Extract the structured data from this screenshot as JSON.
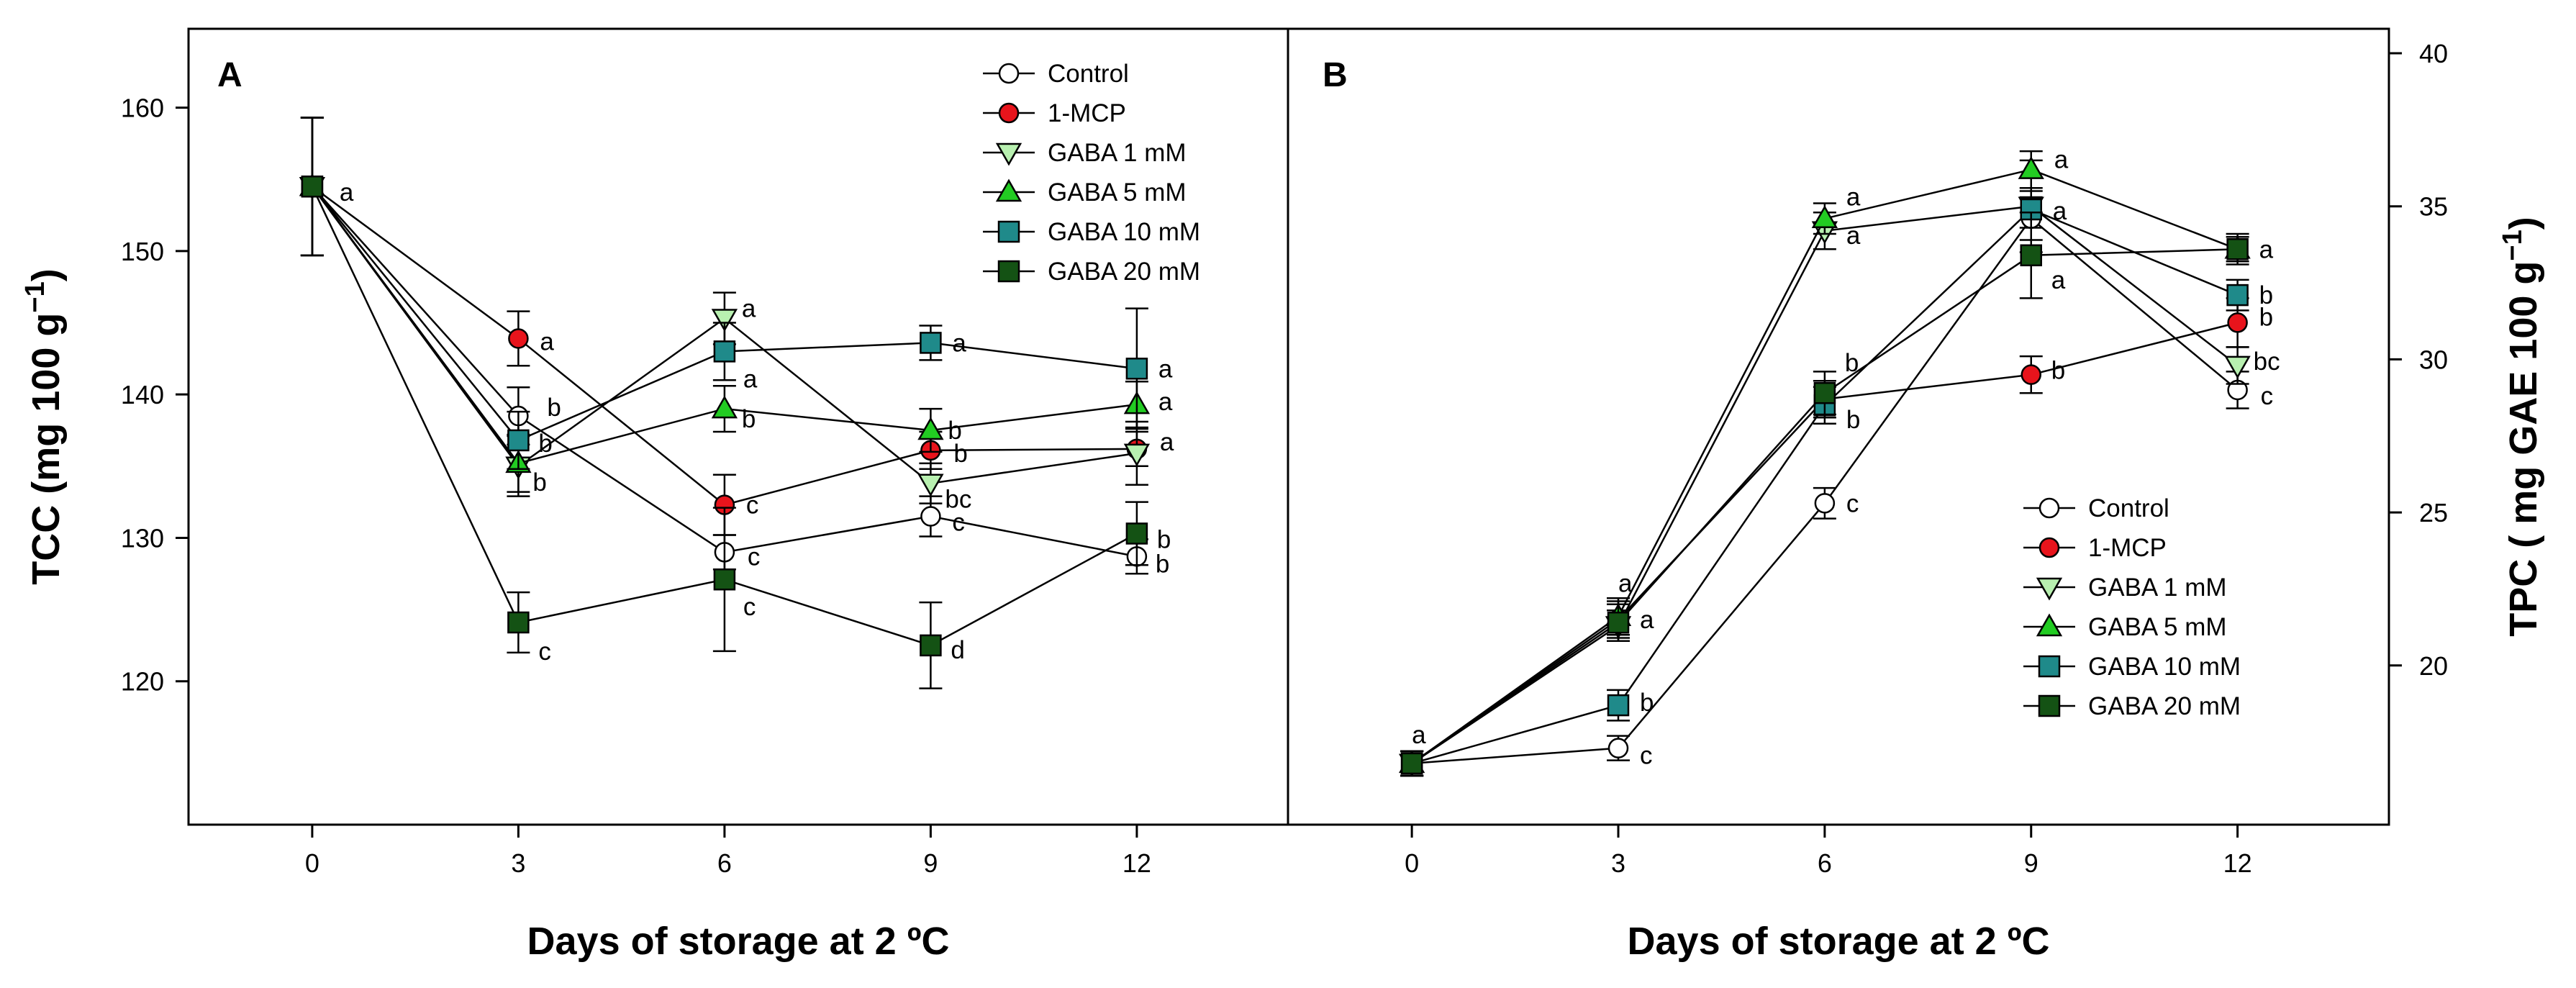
{
  "chart_data": [
    {
      "type": "line",
      "panel_label": "A",
      "xlabel": "Days of storage at 2 ºC",
      "ylabel": "TCC (mg 100 g",
      "ylabel_sup": "−1",
      "ylabel_end": ")",
      "y_axis_side": "left",
      "x": [
        0,
        3,
        6,
        9,
        12
      ],
      "xlim": [
        -1.8,
        14.2
      ],
      "ylim": [
        110,
        165.5
      ],
      "xticks": [
        "0",
        "3",
        "6",
        "9",
        "12"
      ],
      "yticks": [
        120,
        130,
        140,
        150,
        160
      ],
      "ytick_labels": [
        "120",
        "130",
        "140",
        "150",
        "160"
      ],
      "legend_position": "top-right",
      "series": [
        {
          "name": "Control",
          "marker": "circle",
          "fill": "#ffffff",
          "values": [
            154.5,
            138.5,
            129.0,
            131.5,
            128.7
          ],
          "errors": [
            4.8,
            2.0,
            1.2,
            1.4,
            1.2
          ],
          "letters": [
            "a",
            "b",
            "c",
            "c",
            "b"
          ]
        },
        {
          "name": "1-MCP",
          "marker": "circle",
          "fill": "#e8141c",
          "values": [
            154.5,
            143.9,
            132.3,
            136.1,
            136.2
          ],
          "errors": [
            4.8,
            1.9,
            2.1,
            1.3,
            1.2
          ],
          "letters": [
            "",
            "a",
            "c",
            "b",
            "a"
          ]
        },
        {
          "name": "GABA 1 mM",
          "marker": "triangle-down",
          "fill": "#b8f0b0",
          "values": [
            154.5,
            135.0,
            145.3,
            133.8,
            135.9
          ],
          "errors": [
            4.8,
            2.1,
            1.8,
            1.4,
            2.2
          ],
          "letters": [
            "",
            "b",
            "a",
            "bc",
            ""
          ]
        },
        {
          "name": "GABA 5 mM",
          "marker": "triangle-up",
          "fill": "#22cc22",
          "values": [
            154.5,
            135.2,
            139.0,
            137.5,
            139.3
          ],
          "errors": [
            4.8,
            2.0,
            1.6,
            1.5,
            1.6
          ],
          "letters": [
            "",
            "",
            "b",
            "b",
            "a"
          ]
        },
        {
          "name": "GABA 10 mM",
          "marker": "square",
          "fill": "#1f8a8a",
          "values": [
            154.5,
            136.8,
            143.0,
            143.6,
            141.8
          ],
          "errors": [
            4.8,
            2.0,
            2.0,
            1.2,
            4.2
          ],
          "letters": [
            "",
            "b",
            "a",
            "a",
            "a"
          ]
        },
        {
          "name": "GABA 20 mM",
          "marker": "square",
          "fill": "#145214",
          "values": [
            154.5,
            124.1,
            127.1,
            122.5,
            130.3
          ],
          "errors": [
            4.8,
            2.1,
            5.0,
            3.0,
            2.2
          ],
          "letters": [
            "",
            "c",
            "c",
            "d",
            "b"
          ]
        }
      ]
    },
    {
      "type": "line",
      "panel_label": "B",
      "xlabel": "Days of storage at 2 ºC",
      "ylabel": "TPC ( mg GAE 100 g",
      "ylabel_sup": "−1",
      "ylabel_end": ")",
      "y_axis_side": "right",
      "x": [
        0,
        3,
        6,
        9,
        12
      ],
      "xlim": [
        -1.8,
        14.2
      ],
      "ylim": [
        14.8,
        40.8
      ],
      "xticks": [
        "0",
        "3",
        "6",
        "9",
        "12"
      ],
      "yticks": [
        20,
        25,
        30,
        35,
        40
      ],
      "ytick_labels": [
        "20",
        "25",
        "30",
        "35",
        "40"
      ],
      "legend_position": "lower-right",
      "series": [
        {
          "name": "Control",
          "marker": "circle",
          "fill": "#ffffff",
          "values": [
            16.8,
            17.3,
            25.3,
            34.6,
            29.0
          ],
          "errors": [
            0.4,
            0.4,
            0.5,
            0.7,
            0.6
          ],
          "letters": [
            "",
            "c",
            "c",
            "",
            "c"
          ]
        },
        {
          "name": "1-MCP",
          "marker": "circle",
          "fill": "#e8141c",
          "values": [
            16.8,
            21.5,
            28.7,
            29.5,
            31.2
          ],
          "errors": [
            0.4,
            0.6,
            0.6,
            0.6,
            0.8
          ],
          "letters": [
            "",
            "",
            "",
            "b",
            "b"
          ]
        },
        {
          "name": "GABA 1 mM",
          "marker": "triangle-down",
          "fill": "#b8f0b0",
          "values": [
            16.8,
            21.3,
            34.2,
            35.0,
            29.8
          ],
          "errors": [
            0.4,
            0.5,
            0.6,
            1.5,
            0.6
          ],
          "letters": [
            "",
            "",
            "a",
            "",
            "bc"
          ]
        },
        {
          "name": "GABA 5 mM",
          "marker": "triangle-up",
          "fill": "#22cc22",
          "values": [
            16.8,
            21.6,
            34.6,
            36.2,
            33.6
          ],
          "errors": [
            0.4,
            0.6,
            0.5,
            0.6,
            0.4
          ],
          "letters": [
            "a",
            "a",
            "a",
            "a",
            ""
          ]
        },
        {
          "name": "GABA 10 mM",
          "marker": "square",
          "fill": "#1f8a8a",
          "values": [
            16.8,
            18.7,
            28.5,
            34.9,
            32.1
          ],
          "errors": [
            0.4,
            0.5,
            0.6,
            0.6,
            0.5
          ],
          "letters": [
            "",
            "b",
            "b",
            "a",
            "b"
          ]
        },
        {
          "name": "GABA 20 mM",
          "marker": "square",
          "fill": "#145214",
          "values": [
            16.8,
            21.4,
            28.9,
            33.4,
            33.6
          ],
          "errors": [
            0.4,
            0.6,
            0.7,
            1.4,
            0.5
          ],
          "letters": [
            "",
            "a",
            "b",
            "a",
            "a"
          ]
        }
      ]
    }
  ]
}
